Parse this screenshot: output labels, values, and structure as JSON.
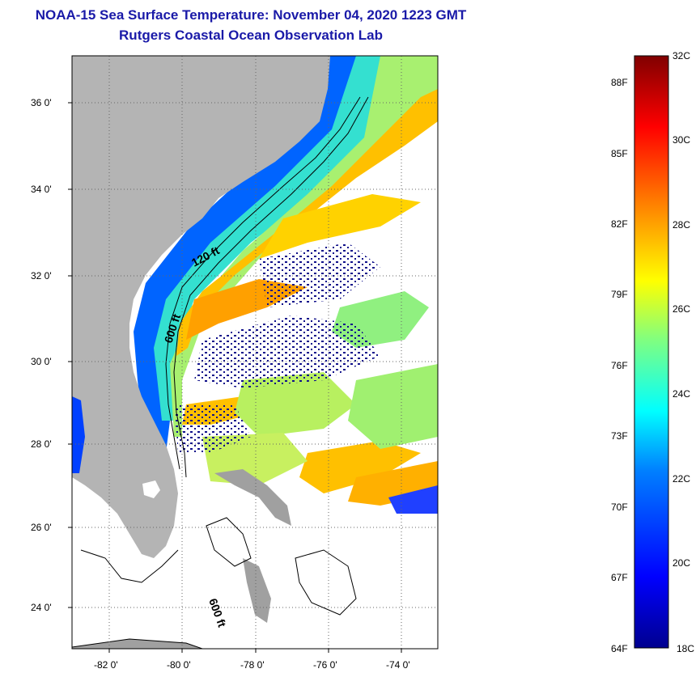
{
  "title": {
    "line1": "NOAA-15 Sea Surface Temperature:  November 04, 2020 1223 GMT",
    "line2": "Rutgers Coastal Ocean Observation Lab"
  },
  "map": {
    "lat_labels": [
      "36 0'",
      "34 0'",
      "32 0'",
      "30 0'",
      "28 0'",
      "26 0'",
      "24 0'"
    ],
    "lon_labels": [
      "-82 0'",
      "-80 0'",
      "-78 0'",
      "-76 0'",
      "-74 0'"
    ],
    "contour_labels": [
      "120 ft",
      "600 ft",
      "600 ft"
    ],
    "land_color": "#b4b4b4",
    "cloud_color": "#ffffff"
  },
  "colorbar": {
    "celsius_labels": [
      "32C",
      "30C",
      "28C",
      "26C",
      "24C",
      "22C",
      "20C",
      "18C"
    ],
    "fahrenheit_labels": [
      "88F",
      "85F",
      "82F",
      "79F",
      "76F",
      "73F",
      "70F",
      "67F",
      "64F"
    ],
    "colormap": [
      "#00008f",
      "#0000ff",
      "#0080ff",
      "#00ffff",
      "#80ff80",
      "#ffff00",
      "#ff8000",
      "#ff0000",
      "#800000"
    ]
  }
}
